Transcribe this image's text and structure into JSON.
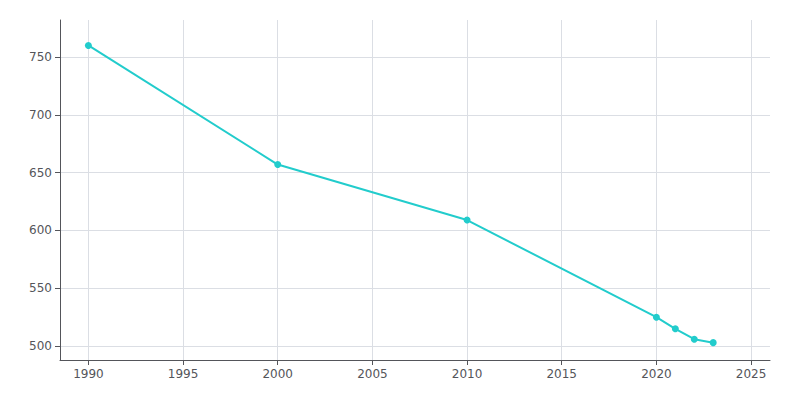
{
  "chart_data": {
    "type": "line",
    "x": [
      1990,
      2000,
      2010,
      2020,
      2021,
      2022,
      2023
    ],
    "values": [
      760,
      657,
      609,
      525,
      515,
      506,
      503
    ],
    "color": "#22CCCC",
    "marker": "circle",
    "xlim": [
      1988.5,
      2026
    ],
    "ylim": [
      488,
      782
    ],
    "xticks": [
      1990,
      1995,
      2000,
      2005,
      2010,
      2015,
      2020,
      2025
    ],
    "yticks": [
      500,
      550,
      600,
      650,
      700,
      750
    ],
    "grid": true
  }
}
